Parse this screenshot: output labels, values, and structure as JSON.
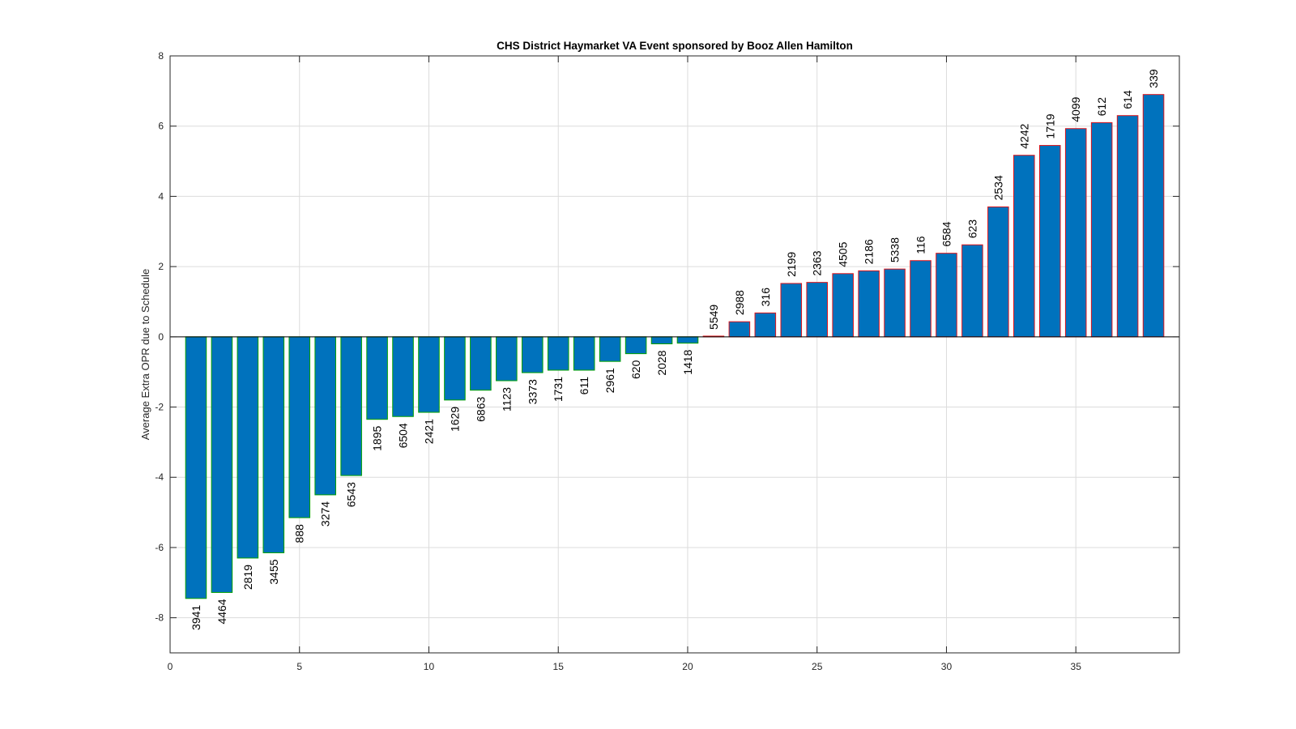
{
  "chart_data": {
    "type": "bar",
    "title": "CHS District Haymarket VA Event sponsored by Booz Allen Hamilton",
    "xlabel": "",
    "ylabel": "Average Extra OPR due to Schedule",
    "xlim": [
      0,
      39
    ],
    "ylim": [
      -9,
      8
    ],
    "xticks": [
      0,
      5,
      10,
      15,
      20,
      25,
      30,
      35
    ],
    "yticks": [
      -8,
      -6,
      -4,
      -2,
      0,
      2,
      4,
      6,
      8
    ],
    "grid": true,
    "bar_color": "#0072BD",
    "negative_edge_color": "#00A000",
    "positive_edge_color": "#E0151B",
    "x": [
      1,
      2,
      3,
      4,
      5,
      6,
      7,
      8,
      9,
      10,
      11,
      12,
      13,
      14,
      15,
      16,
      17,
      18,
      19,
      20,
      21,
      22,
      23,
      24,
      25,
      26,
      27,
      28,
      29,
      30,
      31,
      32,
      33,
      34,
      35,
      36,
      37,
      38
    ],
    "values": [
      -7.45,
      -7.28,
      -6.3,
      -6.15,
      -5.15,
      -4.5,
      -3.95,
      -2.35,
      -2.27,
      -2.15,
      -1.8,
      -1.52,
      -1.25,
      -1.02,
      -0.95,
      -0.95,
      -0.7,
      -0.48,
      -0.2,
      -0.18,
      0.02,
      0.43,
      0.68,
      1.52,
      1.55,
      1.8,
      1.88,
      1.93,
      2.17,
      2.38,
      2.62,
      3.7,
      5.17,
      5.45,
      5.93,
      6.1,
      6.3,
      6.9
    ],
    "labels": [
      "3941",
      "4464",
      "2819",
      "3455",
      "888",
      "3274",
      "6543",
      "1895",
      "6504",
      "2421",
      "1629",
      "6863",
      "1123",
      "3373",
      "1731",
      "611",
      "2961",
      "620",
      "2028",
      "1418",
      "5549",
      "2988",
      "316",
      "2199",
      "2363",
      "4505",
      "2186",
      "5338",
      "116",
      "6584",
      "623",
      "2534",
      "4242",
      "1719",
      "4099",
      "612",
      "614",
      "339"
    ]
  }
}
